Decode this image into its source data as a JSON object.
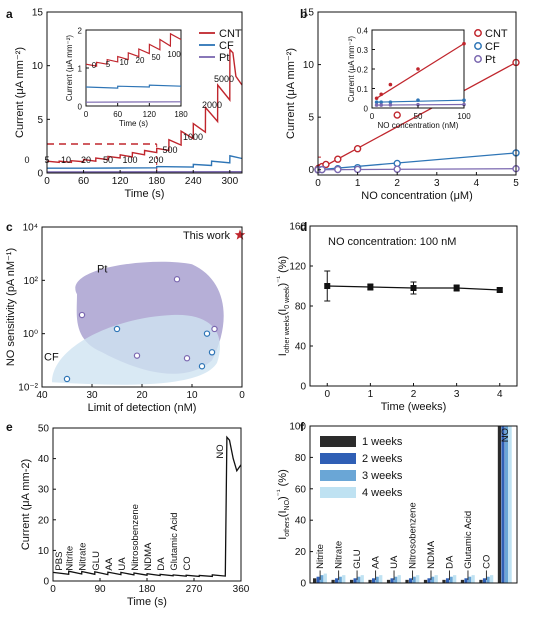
{
  "colors": {
    "cnt": "#c0262d",
    "cf": "#2e75b6",
    "pt": "#7b68b0",
    "pt_region": "#9d94c9",
    "cf_region": "#cfe3f1",
    "star": "#c0262d",
    "bar_1w": "#2b2b2b",
    "bar_2w": "#2f5fb5",
    "bar_3w": "#6aa6d6",
    "bar_4w": "#bfe2f2",
    "spine_6": "#9fd1ea"
  },
  "chart_data": [
    {
      "panel": "a",
      "type": "line",
      "xlabel": "Time (s)",
      "ylabel": "Current (μA mm⁻²)",
      "xlim": [
        0,
        320
      ],
      "ylim": [
        0,
        15
      ],
      "xticks": [
        0,
        60,
        120,
        180,
        240,
        300
      ],
      "yticks": [
        0,
        5,
        10,
        15
      ],
      "legend": [
        "CNT",
        "CF",
        "Pt"
      ],
      "legend_position": "top-right",
      "series": [
        {
          "name": "CNT",
          "x": [
            0,
            20,
            20.1,
            40,
            40.1,
            60,
            60.1,
            80,
            80.1,
            100,
            100.1,
            120,
            120.1,
            140,
            140.1,
            160,
            160.1,
            180,
            180.1,
            200,
            200.1,
            220,
            220.1,
            240,
            240.1,
            260,
            260.1,
            280,
            280.1,
            300,
            300.1,
            305,
            310,
            320
          ],
          "y": [
            1.1,
            1.0,
            1.1,
            1.0,
            1.15,
            1.05,
            1.25,
            1.1,
            1.4,
            1.25,
            1.55,
            1.4,
            1.7,
            1.5,
            1.9,
            1.7,
            2.1,
            1.9,
            2.3,
            2.1,
            3.1,
            2.6,
            3.9,
            3.2,
            4.6,
            3.8,
            6.1,
            4.8,
            8.2,
            6.8,
            11.5,
            11.2,
            9.0,
            8.2
          ]
        },
        {
          "name": "CF",
          "x": [
            0,
            60,
            120,
            180,
            180.1,
            240,
            240.1,
            270,
            270.1,
            300,
            300.1,
            320
          ],
          "y": [
            0.45,
            0.45,
            0.47,
            0.48,
            0.6,
            0.55,
            0.8,
            0.7,
            1.1,
            0.95,
            1.6,
            1.35
          ]
        },
        {
          "name": "Pt",
          "x": [
            0,
            320
          ],
          "y": [
            0.1,
            0.12
          ]
        }
      ],
      "annotations": [
        "0",
        "5",
        "10",
        "20",
        "50",
        "100",
        "200",
        "500",
        "1000",
        "2000",
        "5000"
      ],
      "inset": {
        "xlabel": "Time (s)",
        "ylabel": "Current (μA mm⁻²)",
        "xlim": [
          0,
          180
        ],
        "ylim": [
          0,
          2
        ],
        "xticks": [
          0,
          60,
          120,
          180
        ],
        "yticks": [
          0,
          1,
          2
        ],
        "annotations": [
          "0",
          "5",
          "10",
          "20",
          "50",
          "100"
        ]
      }
    },
    {
      "panel": "b",
      "type": "scatter",
      "xlabel": "NO concentration (μM)",
      "ylabel": "Current (μA mm⁻²)",
      "xlim": [
        0,
        5
      ],
      "ylim": [
        -0.5,
        15
      ],
      "xticks": [
        0,
        1,
        2,
        3,
        4,
        5
      ],
      "yticks": [
        0,
        5,
        10,
        15
      ],
      "legend": [
        "CNT",
        "CF",
        "Pt"
      ],
      "legend_position": "top-right",
      "series": [
        {
          "name": "CNT",
          "x": [
            0,
            0.005,
            0.01,
            0.02,
            0.05,
            0.1,
            0.2,
            0.5,
            1,
            2,
            5
          ],
          "y": [
            0,
            0.05,
            0.1,
            0.15,
            0.2,
            0.3,
            0.5,
            1.0,
            2.0,
            5.2,
            10.2
          ]
        },
        {
          "name": "CF",
          "x": [
            0,
            0.1,
            0.5,
            1,
            2,
            5
          ],
          "y": [
            0,
            0.02,
            0.1,
            0.2,
            0.6,
            1.6
          ]
        },
        {
          "name": "Pt",
          "x": [
            0,
            0.1,
            0.5,
            1,
            2,
            5
          ],
          "y": [
            0,
            0.01,
            0.02,
            0.03,
            0.05,
            0.1
          ]
        }
      ],
      "inset": {
        "xlabel": "NO concentration (nM)",
        "ylabel": "Current (μA mm⁻²)",
        "xlim": [
          0,
          100
        ],
        "ylim": [
          0,
          0.4
        ],
        "xticks": [
          0,
          50,
          100
        ],
        "yticks": [
          0,
          0.1,
          0.2,
          0.3,
          0.4
        ],
        "series": [
          {
            "name": "CNT",
            "x": [
              5,
              10,
              20,
              50,
              100
            ],
            "y": [
              0.05,
              0.07,
              0.12,
              0.2,
              0.33
            ]
          },
          {
            "name": "CF",
            "x": [
              5,
              10,
              20,
              50,
              100
            ],
            "y": [
              0.03,
              0.03,
              0.03,
              0.04,
              0.04
            ]
          },
          {
            "name": "Pt",
            "x": [
              5,
              10,
              20,
              50,
              100
            ],
            "y": [
              0.015,
              0.015,
              0.016,
              0.017,
              0.018
            ]
          }
        ]
      }
    },
    {
      "panel": "c",
      "type": "scatter",
      "xlabel": "Limit of detection (nM)",
      "ylabel": "NO sensitivity (pA nM⁻¹)",
      "xlim": [
        40,
        0
      ],
      "ylim": [
        0.01,
        10000
      ],
      "yscale": "log",
      "xticks": [
        40,
        30,
        20,
        10,
        0
      ],
      "yticks": [
        "10⁻²",
        "10⁰",
        "10²",
        "10⁴"
      ],
      "region_labels": [
        "Pt",
        "CF"
      ],
      "series": [
        {
          "name": "Pt",
          "x": [
            32,
            13,
            21,
            11,
            5.5
          ],
          "y": [
            5,
            110,
            0.15,
            0.12,
            1.5
          ]
        },
        {
          "name": "CF",
          "x": [
            35,
            25,
            7,
            6,
            8
          ],
          "y": [
            0.02,
            1.5,
            1.0,
            0.2,
            0.06
          ]
        },
        {
          "name": "This work",
          "x": [
            0
          ],
          "y": [
            5000
          ]
        }
      ],
      "annotation": "This work"
    },
    {
      "panel": "d",
      "type": "line",
      "xlabel": "Time (weeks)",
      "ylabel_parts": [
        "I",
        "other weeks",
        "(I",
        "0 week",
        ")",
        "⁻¹",
        " (%)"
      ],
      "xlim": [
        -0.4,
        4.4
      ],
      "ylim": [
        0,
        160
      ],
      "xticks": [
        0,
        1,
        2,
        3,
        4
      ],
      "yticks": [
        0,
        40,
        80,
        120,
        160
      ],
      "annotation": "NO concentration: 100 nM",
      "x": [
        0,
        1,
        2,
        3,
        4
      ],
      "y": [
        100,
        99,
        98,
        98,
        96
      ],
      "yerr": [
        15,
        3,
        6,
        3,
        2
      ]
    },
    {
      "panel": "e",
      "type": "line",
      "xlabel": "Time (s)",
      "ylabel": "Current (μA mm-2)",
      "xlim": [
        0,
        360
      ],
      "ylim": [
        0,
        50
      ],
      "xticks": [
        0,
        90,
        180,
        270,
        360
      ],
      "yticks": [
        0,
        10,
        20,
        30,
        40,
        50
      ],
      "annotations": [
        "PBS",
        "Nitrite",
        "Nitrate",
        "GLU",
        "AA",
        "UA",
        "Nitrosobenzene",
        "NDMA",
        "DA",
        "Glutamic Acid",
        "CO",
        "NO"
      ],
      "x": [
        0,
        30,
        30.1,
        55,
        55.1,
        80,
        80.1,
        105,
        105.1,
        130,
        130.1,
        155,
        155.1,
        180,
        180.1,
        205,
        205.1,
        230,
        230.1,
        255,
        255.1,
        280,
        280.1,
        305,
        305.1,
        330,
        333,
        338,
        345,
        352,
        360
      ],
      "y": [
        2.8,
        2.2,
        3.2,
        2.3,
        3.1,
        2.2,
        3.0,
        2.1,
        2.9,
        2.1,
        2.8,
        2.0,
        2.6,
        1.9,
        2.4,
        1.8,
        2.2,
        1.7,
        2.0,
        1.6,
        1.9,
        1.5,
        1.8,
        1.5,
        2.0,
        1.6,
        47,
        46,
        40,
        36,
        38
      ]
    },
    {
      "panel": "f",
      "type": "bar",
      "xlabel": "",
      "ylabel_parts": [
        "I",
        "others",
        "(I",
        "NO",
        ")",
        "⁻¹",
        " (%)"
      ],
      "ylim": [
        0,
        100
      ],
      "yticks": [
        0,
        20,
        40,
        60,
        80,
        100
      ],
      "categories": [
        "Nitrite",
        "Nitrate",
        "GLU",
        "AA",
        "UA",
        "Nitrosobenzene",
        "NDMA",
        "DA",
        "Glutamic Acid",
        "CO",
        "NO"
      ],
      "legend": [
        "1 weeks",
        "2 weeks",
        "3 weeks",
        "4 weeks"
      ],
      "legend_position": "top-left",
      "series": [
        {
          "name": "1 weeks",
          "values": [
            3,
            2,
            2,
            2,
            2,
            2,
            2,
            2,
            2,
            2,
            100
          ]
        },
        {
          "name": "2 weeks",
          "values": [
            4,
            3,
            3,
            3,
            3,
            3,
            3,
            3,
            3,
            3,
            100
          ]
        },
        {
          "name": "3 weeks",
          "values": [
            5,
            4,
            4,
            4,
            4,
            4,
            4,
            4,
            4,
            4,
            100
          ]
        },
        {
          "name": "4 weeks",
          "values": [
            6,
            5,
            5,
            5,
            5,
            5,
            5,
            5,
            5,
            5,
            100
          ]
        }
      ]
    }
  ],
  "panel_labels": [
    "a",
    "b",
    "c",
    "d",
    "e",
    "f"
  ]
}
